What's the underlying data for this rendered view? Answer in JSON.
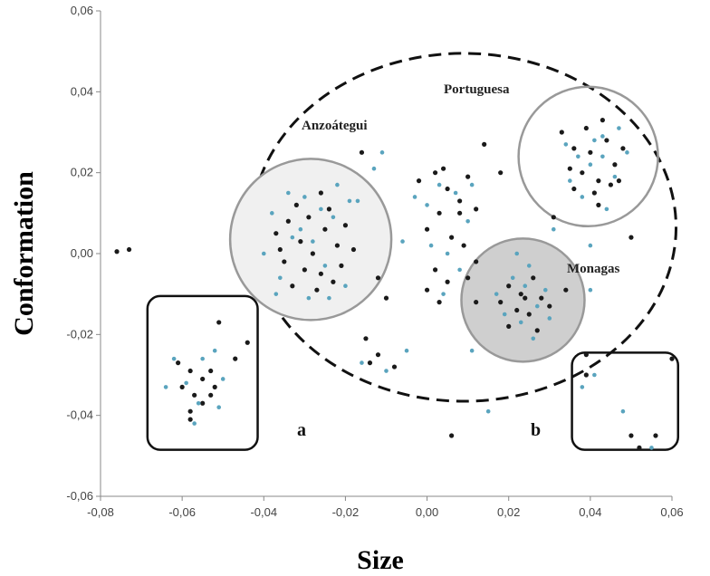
{
  "chart_data": {
    "type": "scatter",
    "xlabel": "Size",
    "ylabel": "Conformation",
    "xlim": [
      -0.08,
      0.06
    ],
    "ylim": [
      -0.06,
      0.06
    ],
    "x_ticks": [
      "-0,08",
      "-0,06",
      "-0,04",
      "-0,02",
      "0,00",
      "0,02",
      "0,04",
      "0,06"
    ],
    "y_ticks": [
      "0,06",
      "0,04",
      "0,02",
      "0,00",
      "-0,02",
      "-0,04",
      "-0,06"
    ],
    "grid": false,
    "colors": {
      "dark": "#1a1a1a",
      "blue": "#5aa4be",
      "outline": "#999999",
      "monagas_fill": "#cfcfcf",
      "anzoategui_fill": "#f0f0f0"
    },
    "annotations": {
      "anzoategui": "Anzoátegui",
      "portuguesa": "Portuguesa",
      "monagas": "Monagas",
      "box_a": "a",
      "box_b": "b"
    },
    "series": [
      {
        "color": "dark",
        "points": [
          [
            -0.076,
            0.0005
          ],
          [
            -0.073,
            0.001
          ],
          [
            -0.061,
            -0.027
          ],
          [
            -0.058,
            -0.029
          ],
          [
            -0.055,
            -0.031
          ],
          [
            -0.053,
            -0.029
          ],
          [
            -0.06,
            -0.033
          ],
          [
            -0.057,
            -0.035
          ],
          [
            -0.052,
            -0.033
          ],
          [
            -0.058,
            -0.039
          ],
          [
            -0.058,
            -0.041
          ],
          [
            -0.051,
            -0.017
          ],
          [
            -0.044,
            -0.022
          ],
          [
            -0.047,
            -0.026
          ],
          [
            -0.053,
            -0.035
          ],
          [
            -0.055,
            -0.037
          ],
          [
            -0.037,
            0.005
          ],
          [
            -0.034,
            0.008
          ],
          [
            -0.031,
            0.003
          ],
          [
            -0.028,
            0.0
          ],
          [
            -0.025,
            0.006
          ],
          [
            -0.022,
            0.002
          ],
          [
            -0.03,
            -0.004
          ],
          [
            -0.026,
            -0.005
          ],
          [
            -0.032,
            0.012
          ],
          [
            -0.024,
            0.011
          ],
          [
            -0.02,
            0.007
          ],
          [
            -0.035,
            -0.002
          ],
          [
            -0.029,
            0.009
          ],
          [
            -0.027,
            -0.009
          ],
          [
            -0.021,
            -0.003
          ],
          [
            -0.033,
            -0.008
          ],
          [
            -0.018,
            0.001
          ],
          [
            -0.023,
            -0.007
          ],
          [
            -0.036,
            0.001
          ],
          [
            -0.026,
            0.015
          ],
          [
            -0.016,
            0.025
          ],
          [
            -0.012,
            -0.006
          ],
          [
            -0.01,
            -0.011
          ],
          [
            -0.015,
            -0.021
          ],
          [
            -0.012,
            -0.025
          ],
          [
            -0.008,
            -0.028
          ],
          [
            -0.014,
            -0.027
          ],
          [
            -0.002,
            0.018
          ],
          [
            0.002,
            0.02
          ],
          [
            0.005,
            0.016
          ],
          [
            0.008,
            0.013
          ],
          [
            0.01,
            0.019
          ],
          [
            0.012,
            0.011
          ],
          [
            0.003,
            0.01
          ],
          [
            0.0,
            0.006
          ],
          [
            0.006,
            0.004
          ],
          [
            0.009,
            0.002
          ],
          [
            0.012,
            -0.002
          ],
          [
            0.002,
            -0.004
          ],
          [
            0.0,
            -0.009
          ],
          [
            0.005,
            -0.007
          ],
          [
            0.01,
            -0.006
          ],
          [
            0.012,
            -0.012
          ],
          [
            0.003,
            -0.012
          ],
          [
            0.008,
            0.01
          ],
          [
            0.004,
            0.021
          ],
          [
            0.014,
            0.027
          ],
          [
            0.018,
            0.02
          ],
          [
            0.006,
            -0.045
          ],
          [
            0.02,
            -0.008
          ],
          [
            0.023,
            -0.01
          ],
          [
            0.026,
            -0.006
          ],
          [
            0.028,
            -0.011
          ],
          [
            0.022,
            -0.014
          ],
          [
            0.025,
            -0.015
          ],
          [
            0.02,
            -0.018
          ],
          [
            0.027,
            -0.019
          ],
          [
            0.03,
            -0.013
          ],
          [
            0.024,
            -0.011
          ],
          [
            0.018,
            -0.012
          ],
          [
            0.034,
            -0.009
          ],
          [
            0.033,
            0.03
          ],
          [
            0.036,
            0.026
          ],
          [
            0.038,
            0.02
          ],
          [
            0.04,
            0.025
          ],
          [
            0.042,
            0.018
          ],
          [
            0.044,
            0.028
          ],
          [
            0.046,
            0.022
          ],
          [
            0.048,
            0.026
          ],
          [
            0.036,
            0.016
          ],
          [
            0.041,
            0.015
          ],
          [
            0.045,
            0.017
          ],
          [
            0.039,
            0.031
          ],
          [
            0.043,
            0.033
          ],
          [
            0.047,
            0.018
          ],
          [
            0.042,
            0.012
          ],
          [
            0.035,
            0.021
          ],
          [
            0.031,
            0.009
          ],
          [
            0.05,
            0.004
          ],
          [
            0.039,
            -0.025
          ],
          [
            0.039,
            -0.03
          ],
          [
            0.05,
            -0.045
          ],
          [
            0.052,
            -0.048
          ],
          [
            0.056,
            -0.045
          ],
          [
            0.06,
            -0.026
          ]
        ]
      },
      {
        "color": "blue",
        "points": [
          [
            -0.064,
            -0.033
          ],
          [
            -0.062,
            -0.026
          ],
          [
            -0.059,
            -0.032
          ],
          [
            -0.056,
            -0.037
          ],
          [
            -0.057,
            -0.042
          ],
          [
            -0.05,
            -0.031
          ],
          [
            -0.055,
            -0.026
          ],
          [
            -0.052,
            -0.024
          ],
          [
            -0.051,
            -0.038
          ],
          [
            -0.04,
            0.0
          ],
          [
            -0.038,
            0.01
          ],
          [
            -0.036,
            -0.006
          ],
          [
            -0.033,
            0.004
          ],
          [
            -0.03,
            0.014
          ],
          [
            -0.028,
            0.003
          ],
          [
            -0.025,
            -0.003
          ],
          [
            -0.023,
            0.009
          ],
          [
            -0.02,
            -0.008
          ],
          [
            -0.029,
            -0.011
          ],
          [
            -0.034,
            0.015
          ],
          [
            -0.019,
            0.013
          ],
          [
            -0.037,
            -0.01
          ],
          [
            -0.022,
            0.017
          ],
          [
            -0.031,
            0.006
          ],
          [
            -0.026,
            0.011
          ],
          [
            -0.024,
            -0.011
          ],
          [
            -0.017,
            0.013
          ],
          [
            -0.013,
            0.021
          ],
          [
            -0.011,
            0.025
          ],
          [
            -0.006,
            0.003
          ],
          [
            -0.003,
            0.014
          ],
          [
            0.0,
            0.012
          ],
          [
            0.003,
            0.017
          ],
          [
            0.007,
            0.015
          ],
          [
            0.011,
            0.017
          ],
          [
            0.005,
            0.0
          ],
          [
            0.008,
            -0.004
          ],
          [
            0.01,
            0.008
          ],
          [
            0.001,
            0.002
          ],
          [
            0.004,
            -0.01
          ],
          [
            0.011,
            -0.024
          ],
          [
            -0.016,
            -0.027
          ],
          [
            -0.01,
            -0.029
          ],
          [
            -0.005,
            -0.024
          ],
          [
            0.017,
            -0.01
          ],
          [
            0.021,
            -0.006
          ],
          [
            0.024,
            -0.008
          ],
          [
            0.027,
            -0.013
          ],
          [
            0.023,
            -0.017
          ],
          [
            0.026,
            -0.021
          ],
          [
            0.029,
            -0.009
          ],
          [
            0.019,
            -0.015
          ],
          [
            0.025,
            -0.003
          ],
          [
            0.03,
            -0.016
          ],
          [
            0.034,
            0.027
          ],
          [
            0.037,
            0.024
          ],
          [
            0.04,
            0.022
          ],
          [
            0.043,
            0.029
          ],
          [
            0.046,
            0.019
          ],
          [
            0.049,
            0.025
          ],
          [
            0.038,
            0.014
          ],
          [
            0.044,
            0.011
          ],
          [
            0.047,
            0.031
          ],
          [
            0.041,
            0.028
          ],
          [
            0.035,
            0.018
          ],
          [
            0.043,
            0.024
          ],
          [
            0.022,
            0.0
          ],
          [
            0.031,
            0.006
          ],
          [
            0.04,
            0.002
          ],
          [
            0.04,
            -0.009
          ],
          [
            0.038,
            -0.033
          ],
          [
            0.048,
            -0.039
          ],
          [
            0.055,
            -0.048
          ],
          [
            0.015,
            -0.039
          ],
          [
            0.041,
            -0.03
          ]
        ]
      }
    ]
  }
}
